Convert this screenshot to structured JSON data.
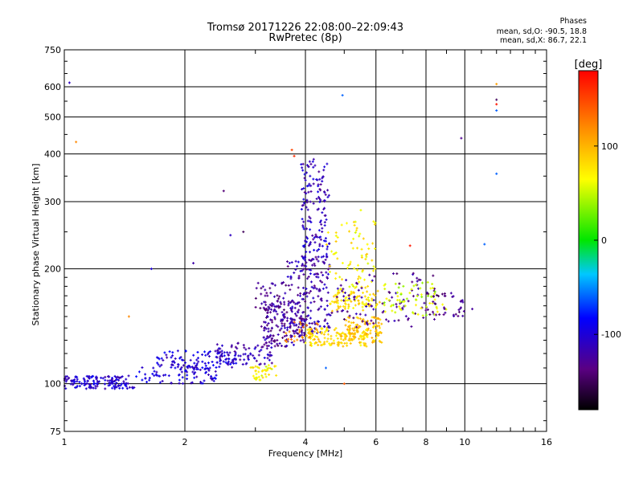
{
  "header": {
    "title": "Tromsø 20171226 22:08:00–22:09:43",
    "subtitle": "RwPretec (8p)"
  },
  "stats": {
    "heading": "Phases",
    "line_o": "mean, sd,O: -90.5, 18.8",
    "line_x": "mean, sd,X:  86.7, 22.1"
  },
  "chart_data": {
    "type": "scatter",
    "xlabel": "Frequency [MHz]",
    "ylabel": "Stationary phase Virtual Height [km]",
    "xscale": "log",
    "yscale": "log",
    "xlim": [
      1,
      16
    ],
    "ylim": [
      75,
      750
    ],
    "xticks": [
      1,
      2,
      4,
      6,
      8,
      10,
      16
    ],
    "xtick_labels": [
      "1",
      "2",
      "4",
      "6",
      "8",
      "10",
      "16"
    ],
    "yticks": [
      75,
      100,
      200,
      300,
      400,
      500,
      600,
      750
    ],
    "ytick_labels": [
      "75",
      "100",
      "200",
      "300",
      "400",
      "500",
      "600",
      "750"
    ],
    "grid": true,
    "colorbar": {
      "label": "[deg]",
      "range": [
        -180,
        180
      ],
      "ticks": [
        100,
        0,
        -100
      ],
      "tick_labels": [
        "100",
        "0",
        "-100"
      ]
    },
    "clusters": [
      {
        "f": [
          1.0,
          1.5
        ],
        "h": [
          97,
          105
        ],
        "phase": -105,
        "n": 140
      },
      {
        "f": [
          1.5,
          2.4
        ],
        "h": [
          100,
          112
        ],
        "phase": -100,
        "n": 90
      },
      {
        "f": [
          1.7,
          2.7
        ],
        "h": [
          110,
          122
        ],
        "phase": -100,
        "n": 80
      },
      {
        "f": [
          2.4,
          3.3
        ],
        "h": [
          112,
          128
        ],
        "phase": -112,
        "n": 90
      },
      {
        "f": [
          2.9,
          3.4
        ],
        "h": [
          102,
          112
        ],
        "phase": 70,
        "n": 40
      },
      {
        "f": [
          3.1,
          4.0
        ],
        "h": [
          125,
          165
        ],
        "phase": -125,
        "n": 180
      },
      {
        "f": [
          3.0,
          3.6
        ],
        "h": [
          150,
          185
        ],
        "phase": -130,
        "n": 40
      },
      {
        "f": [
          3.6,
          4.6
        ],
        "h": [
          135,
          215
        ],
        "phase": -118,
        "n": 170
      },
      {
        "f": [
          3.9,
          4.6
        ],
        "h": [
          210,
          390
        ],
        "phase": -112,
        "n": 160
      },
      {
        "f": [
          4.0,
          5.8
        ],
        "h": [
          125,
          140
        ],
        "phase": 82,
        "n": 140
      },
      {
        "f": [
          4.6,
          6.2
        ],
        "h": [
          155,
          175
        ],
        "phase": 78,
        "n": 90
      },
      {
        "f": [
          4.5,
          6.0
        ],
        "h": [
          175,
          270
        ],
        "phase": 72,
        "n": 80
      },
      {
        "f": [
          5.0,
          6.2
        ],
        "h": [
          128,
          150
        ],
        "phase": 95,
        "n": 110
      },
      {
        "f": [
          4.6,
          8.5
        ],
        "h": [
          140,
          195
        ],
        "phase": -128,
        "n": 100
      },
      {
        "f": [
          6.2,
          9.0
        ],
        "h": [
          150,
          185
        ],
        "phase": 50,
        "n": 70
      },
      {
        "f": [
          8.0,
          10.5
        ],
        "h": [
          150,
          175
        ],
        "phase": -135,
        "n": 40
      },
      {
        "f": [
          3.5,
          4.3
        ],
        "h": [
          128,
          145
        ],
        "phase": 120,
        "n": 25
      }
    ],
    "outliers": [
      {
        "f": 1.03,
        "h": 615,
        "phase": -110
      },
      {
        "f": 1.07,
        "h": 430,
        "phase": 120
      },
      {
        "f": 1.45,
        "h": 150,
        "phase": 120
      },
      {
        "f": 1.65,
        "h": 200,
        "phase": -100
      },
      {
        "f": 2.1,
        "h": 207,
        "phase": -120
      },
      {
        "f": 2.5,
        "h": 320,
        "phase": -140
      },
      {
        "f": 2.6,
        "h": 245,
        "phase": -110
      },
      {
        "f": 2.8,
        "h": 250,
        "phase": -150
      },
      {
        "f": 3.7,
        "h": 410,
        "phase": 150
      },
      {
        "f": 3.75,
        "h": 395,
        "phase": 160
      },
      {
        "f": 4.95,
        "h": 570,
        "phase": -60
      },
      {
        "f": 5.5,
        "h": 285,
        "phase": 60
      },
      {
        "f": 7.3,
        "h": 230,
        "phase": 170
      },
      {
        "f": 9.8,
        "h": 440,
        "phase": -130
      },
      {
        "f": 11.2,
        "h": 232,
        "phase": -60
      },
      {
        "f": 12.0,
        "h": 610,
        "phase": 110
      },
      {
        "f": 12.0,
        "h": 555,
        "phase": -150
      },
      {
        "f": 12.0,
        "h": 540,
        "phase": 170
      },
      {
        "f": 12.0,
        "h": 520,
        "phase": -60
      },
      {
        "f": 12.0,
        "h": 355,
        "phase": -60
      },
      {
        "f": 5.0,
        "h": 100,
        "phase": 140
      },
      {
        "f": 4.5,
        "h": 110,
        "phase": -60
      }
    ]
  }
}
